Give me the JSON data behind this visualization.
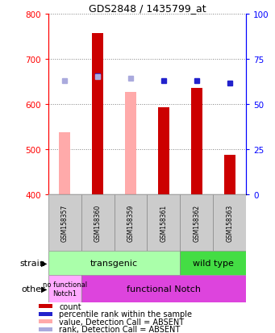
{
  "title": "GDS2848 / 1435799_at",
  "samples": [
    "GSM158357",
    "GSM158360",
    "GSM158359",
    "GSM158361",
    "GSM158362",
    "GSM158363"
  ],
  "bar_values": [
    null,
    757,
    null,
    593,
    636,
    487
  ],
  "bar_absent_values": [
    537,
    null,
    626,
    null,
    null,
    null
  ],
  "rank_values": [
    null,
    662,
    null,
    651,
    651,
    646
  ],
  "rank_absent_values": [
    651,
    660,
    657,
    null,
    null,
    null
  ],
  "ylim_left": [
    400,
    800
  ],
  "ylim_right": [
    0,
    100
  ],
  "yticks_left": [
    400,
    500,
    600,
    700,
    800
  ],
  "yticks_right": [
    0,
    25,
    50,
    75,
    100
  ],
  "bar_color": "#cc0000",
  "bar_absent_color": "#ffaaaa",
  "rank_color": "#2222cc",
  "rank_absent_color": "#aaaadd",
  "transgenic_color": "#aaffaa",
  "wildtype_color": "#44dd44",
  "nofunc_color": "#ffaaff",
  "func_color": "#dd44dd",
  "sample_box_color": "#cccccc",
  "legend_items": [
    {
      "label": "count",
      "color": "#cc0000"
    },
    {
      "label": "percentile rank within the sample",
      "color": "#2222cc"
    },
    {
      "label": "value, Detection Call = ABSENT",
      "color": "#ffaaaa"
    },
    {
      "label": "rank, Detection Call = ABSENT",
      "color": "#aaaadd"
    }
  ]
}
